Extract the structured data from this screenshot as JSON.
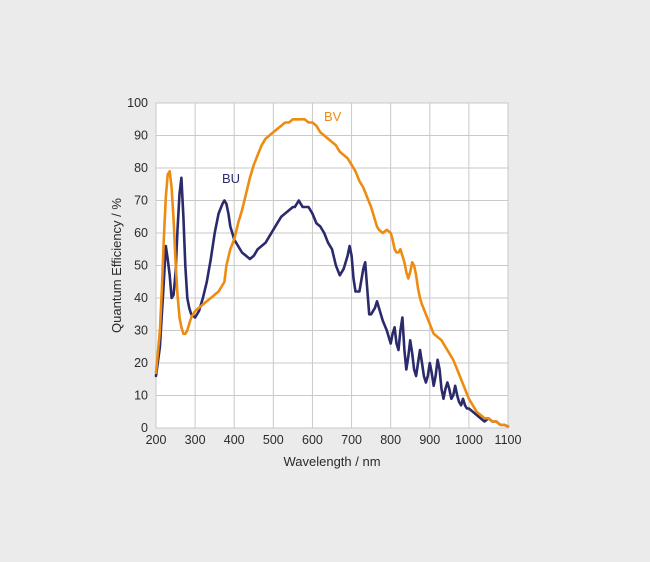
{
  "chart_data": {
    "type": "line",
    "xlabel": "Wavelength / nm",
    "ylabel": "Quantum Efficiency / %",
    "xlim": [
      200,
      1100
    ],
    "ylim": [
      0,
      100
    ],
    "xticks": [
      200,
      300,
      400,
      500,
      600,
      700,
      800,
      900,
      1000,
      1100
    ],
    "yticks": [
      0,
      10,
      20,
      30,
      40,
      50,
      60,
      70,
      80,
      90,
      100
    ],
    "grid": true,
    "colors": {
      "BU": "#2b2a6b",
      "BV": "#ee8c12",
      "grid": "#c9c9c9",
      "plot_background": "#ffffff",
      "page_background": "#ebebeb"
    },
    "series": [
      {
        "name": "BU",
        "x": [
          200,
          210,
          220,
          225,
          230,
          235,
          240,
          245,
          250,
          255,
          260,
          265,
          270,
          275,
          280,
          285,
          290,
          300,
          310,
          320,
          330,
          340,
          350,
          360,
          370,
          375,
          380,
          385,
          390,
          395,
          400,
          410,
          420,
          430,
          440,
          450,
          460,
          470,
          480,
          490,
          500,
          510,
          520,
          530,
          540,
          550,
          555,
          560,
          565,
          570,
          575,
          580,
          590,
          595,
          600,
          610,
          620,
          630,
          640,
          650,
          660,
          670,
          680,
          690,
          695,
          700,
          705,
          710,
          720,
          730,
          735,
          740,
          745,
          750,
          760,
          765,
          770,
          780,
          790,
          800,
          805,
          810,
          815,
          820,
          825,
          830,
          835,
          840,
          845,
          850,
          855,
          860,
          865,
          870,
          875,
          880,
          885,
          890,
          895,
          900,
          905,
          910,
          915,
          920,
          925,
          930,
          935,
          940,
          945,
          950,
          955,
          960,
          965,
          970,
          975,
          980,
          985,
          990,
          995,
          1000,
          1010,
          1020,
          1030,
          1040,
          1050,
          1060,
          1070,
          1080,
          1090,
          1100
        ],
        "values": [
          16,
          25,
          45,
          56,
          52,
          47,
          40,
          41,
          48,
          61,
          72,
          77,
          65,
          50,
          40,
          37,
          35,
          34,
          36,
          40,
          45,
          52,
          60,
          66,
          69,
          70,
          69,
          66,
          62,
          60,
          58,
          56,
          54,
          53,
          52,
          53,
          55,
          56,
          57,
          59,
          61,
          63,
          65,
          66,
          67,
          68,
          68,
          69,
          70,
          69,
          68,
          68,
          68,
          67,
          66,
          63,
          62,
          60,
          57,
          55,
          50,
          47,
          49,
          53,
          56,
          53,
          46,
          42,
          42,
          49,
          51,
          43,
          35,
          35,
          37,
          39,
          37,
          33,
          30,
          26,
          29,
          31,
          26,
          24,
          30,
          34,
          24,
          18,
          22,
          27,
          23,
          18,
          16,
          20,
          24,
          20,
          16,
          14,
          16,
          20,
          17,
          13,
          16,
          21,
          18,
          12,
          9,
          12,
          14,
          12,
          9,
          10,
          13,
          10,
          8,
          7,
          9,
          7,
          6,
          6,
          5,
          4,
          3,
          2,
          3,
          2,
          2,
          1,
          1,
          0.5
        ]
      },
      {
        "name": "BV",
        "x": [
          200,
          210,
          215,
          220,
          225,
          230,
          235,
          240,
          245,
          250,
          255,
          260,
          265,
          270,
          275,
          280,
          285,
          290,
          295,
          300,
          310,
          320,
          330,
          340,
          350,
          360,
          370,
          375,
          380,
          390,
          400,
          410,
          420,
          430,
          440,
          450,
          460,
          470,
          480,
          490,
          500,
          510,
          520,
          530,
          540,
          550,
          560,
          570,
          580,
          590,
          600,
          610,
          620,
          630,
          640,
          650,
          660,
          670,
          680,
          690,
          700,
          710,
          720,
          730,
          740,
          750,
          760,
          765,
          770,
          780,
          790,
          800,
          805,
          810,
          815,
          820,
          825,
          830,
          835,
          840,
          845,
          850,
          855,
          860,
          865,
          870,
          875,
          880,
          890,
          900,
          910,
          920,
          930,
          940,
          950,
          960,
          970,
          980,
          990,
          1000,
          1010,
          1020,
          1030,
          1040,
          1050,
          1060,
          1070,
          1080,
          1090,
          1100
        ],
        "values": [
          17,
          30,
          43,
          58,
          71,
          78,
          79,
          74,
          64,
          51,
          41,
          34,
          31,
          29,
          29,
          30,
          32,
          34,
          35,
          36,
          37,
          38,
          39,
          40,
          41,
          42,
          44,
          45,
          50,
          55,
          58,
          63,
          67,
          72,
          77,
          81,
          84,
          87,
          89,
          90,
          91,
          92,
          93,
          94,
          94,
          95,
          95,
          95,
          95,
          94,
          94,
          93,
          91,
          90,
          89,
          88,
          87,
          85,
          84,
          83,
          81,
          79,
          76,
          74,
          71,
          68,
          64,
          62,
          61,
          60,
          61,
          60,
          58,
          55,
          54,
          54,
          55,
          53,
          51,
          48,
          46,
          48,
          51,
          50,
          47,
          43,
          40,
          38,
          35,
          32,
          29,
          28,
          27,
          25,
          23,
          21,
          18,
          15,
          12,
          9,
          7,
          5,
          4,
          3,
          3,
          2,
          2,
          1,
          1,
          0.5
        ]
      }
    ]
  }
}
